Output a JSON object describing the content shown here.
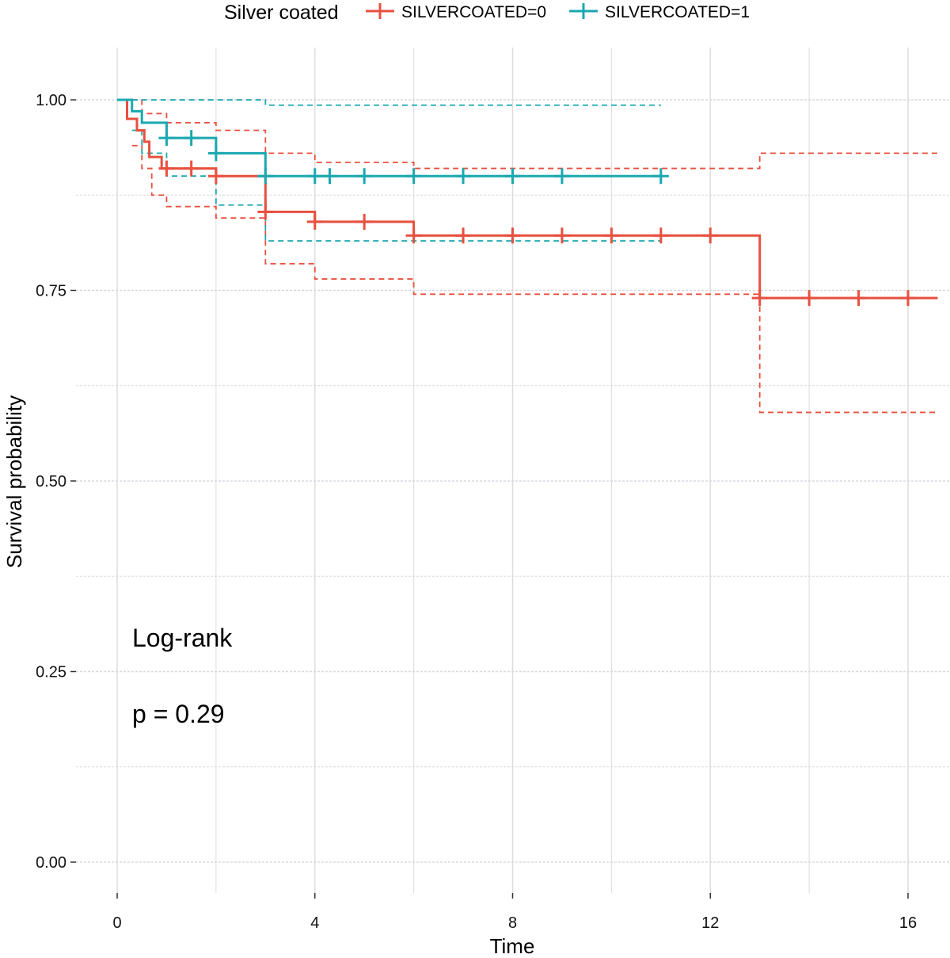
{
  "legend": {
    "title": "Silver coated",
    "entries": [
      {
        "label": "SILVERCOATED=0",
        "color": "#e8503f"
      },
      {
        "label": "SILVERCOATED=1",
        "color": "#1aa8b0"
      }
    ]
  },
  "chart_data": {
    "type": "line",
    "subtype": "kaplan-meier step curves with confidence bands",
    "xlabel": "Time",
    "ylabel": "Survival probability",
    "xlim": [
      -0.5,
      16.6
    ],
    "ylim": [
      -0.05,
      1.02
    ],
    "xticks": [
      0,
      4,
      8,
      12,
      16
    ],
    "xtick_labels": [
      "0",
      "4",
      "8",
      "12",
      "16"
    ],
    "yticks": [
      0.0,
      0.25,
      0.5,
      0.75,
      1.0
    ],
    "ytick_labels": [
      "0.00",
      "0.25",
      "0.50",
      "0.75",
      "1.00"
    ],
    "grid": true,
    "legend_position": "top",
    "annotations": [
      "Log-rank",
      "p = 0.29"
    ],
    "series": [
      {
        "name": "SILVERCOATED=0",
        "color": "#e8503f",
        "steps": [
          [
            0,
            1.0
          ],
          [
            0.2,
            0.975
          ],
          [
            0.4,
            0.96
          ],
          [
            0.55,
            0.945
          ],
          [
            0.65,
            0.925
          ],
          [
            0.9,
            0.91
          ],
          [
            2.0,
            0.9
          ],
          [
            3.0,
            0.853
          ],
          [
            4.0,
            0.84
          ],
          [
            6.0,
            0.822
          ],
          [
            13.0,
            0.74
          ],
          [
            16.6,
            0.74
          ]
        ],
        "censored": [
          [
            1.0,
            0.91
          ],
          [
            1.5,
            0.91
          ],
          [
            2.0,
            0.9
          ],
          [
            3.0,
            0.853
          ],
          [
            4.0,
            0.84
          ],
          [
            5.0,
            0.84
          ],
          [
            6.0,
            0.822
          ],
          [
            7.0,
            0.822
          ],
          [
            8.0,
            0.822
          ],
          [
            9.0,
            0.822
          ],
          [
            10.0,
            0.822
          ],
          [
            11.0,
            0.822
          ],
          [
            12.0,
            0.822
          ],
          [
            13.0,
            0.74
          ],
          [
            14.0,
            0.74
          ],
          [
            15.0,
            0.74
          ],
          [
            16.0,
            0.74
          ]
        ],
        "ci_upper": [
          [
            0.3,
            1.0
          ],
          [
            0.5,
            0.982
          ],
          [
            1.0,
            0.97
          ],
          [
            2.0,
            0.96
          ],
          [
            3.0,
            0.93
          ],
          [
            4.0,
            0.918
          ],
          [
            6.0,
            0.91
          ],
          [
            13.0,
            0.93
          ],
          [
            16.6,
            0.93
          ]
        ],
        "ci_lower": [
          [
            0.3,
            0.94
          ],
          [
            0.5,
            0.91
          ],
          [
            0.7,
            0.875
          ],
          [
            1.0,
            0.86
          ],
          [
            2.0,
            0.845
          ],
          [
            3.0,
            0.785
          ],
          [
            4.0,
            0.765
          ],
          [
            6.0,
            0.745
          ],
          [
            13.0,
            0.59
          ],
          [
            16.6,
            0.59
          ]
        ]
      },
      {
        "name": "SILVERCOATED=1",
        "color": "#1aa8b0",
        "steps": [
          [
            0,
            1.0
          ],
          [
            0.3,
            0.985
          ],
          [
            0.5,
            0.97
          ],
          [
            1.0,
            0.95
          ],
          [
            2.0,
            0.93
          ],
          [
            3.0,
            0.9
          ],
          [
            11.0,
            0.9
          ]
        ],
        "censored": [
          [
            1.0,
            0.95
          ],
          [
            1.5,
            0.95
          ],
          [
            2.0,
            0.93
          ],
          [
            3.0,
            0.9
          ],
          [
            4.0,
            0.9
          ],
          [
            4.3,
            0.9
          ],
          [
            5.0,
            0.9
          ],
          [
            6.0,
            0.9
          ],
          [
            7.0,
            0.9
          ],
          [
            8.0,
            0.9
          ],
          [
            9.0,
            0.9
          ],
          [
            11.0,
            0.9
          ]
        ],
        "ci_upper": [
          [
            0.3,
            1.0
          ],
          [
            3.0,
            1.0
          ],
          [
            3.0,
            0.993
          ],
          [
            11.0,
            0.993
          ]
        ],
        "ci_lower": [
          [
            0.3,
            0.96
          ],
          [
            0.5,
            0.93
          ],
          [
            1.0,
            0.9
          ],
          [
            2.0,
            0.862
          ],
          [
            3.0,
            0.815
          ],
          [
            11.0,
            0.815
          ]
        ]
      }
    ]
  }
}
